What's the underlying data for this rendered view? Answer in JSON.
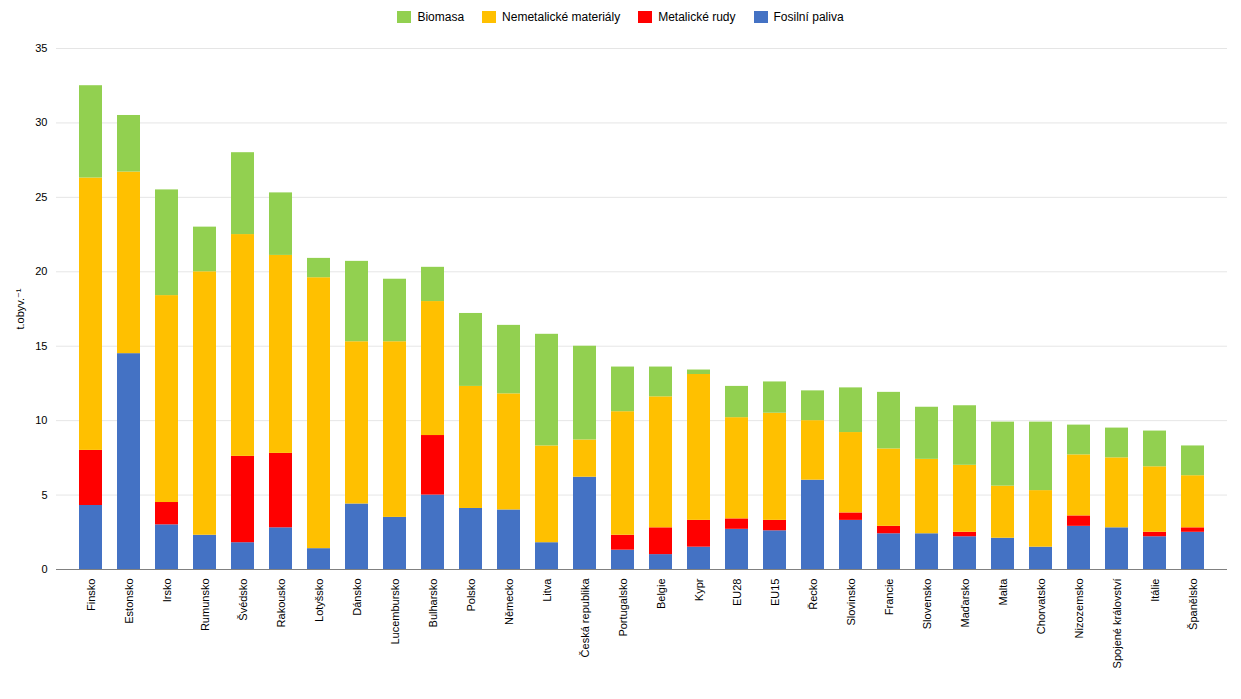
{
  "chart_data": {
    "type": "bar",
    "stacked": true,
    "categories": [
      "Finsko",
      "Estonsko",
      "Irsko",
      "Rumunsko",
      "Švédsko",
      "Rakousko",
      "Lotyšsko",
      "Dánsko",
      "Lucembursko",
      "Bulharsko",
      "Polsko",
      "Německo",
      "Litva",
      "Česká republika",
      "Portugalsko",
      "Belgie",
      "Kypr",
      "EU28",
      "EU15",
      "Řecko",
      "Slovinsko",
      "Francie",
      "Slovensko",
      "Maďarsko",
      "Malta",
      "Chorvatsko",
      "Nizozemsko",
      "Spojené království",
      "Itálie",
      "Španělsko"
    ],
    "series": [
      {
        "name": "Fosilní paliva",
        "color": "#4472c4",
        "values": [
          4.3,
          14.5,
          3.0,
          2.3,
          1.8,
          2.8,
          1.4,
          4.4,
          3.5,
          5.0,
          4.1,
          4.0,
          1.8,
          6.2,
          1.3,
          1.0,
          1.5,
          2.7,
          2.6,
          6.0,
          3.3,
          2.4,
          2.4,
          2.2,
          2.1,
          1.5,
          2.9,
          2.8,
          2.2,
          2.5
        ]
      },
      {
        "name": "Metalické rudy",
        "color": "#ff0000",
        "values": [
          3.7,
          0.0,
          1.5,
          0.0,
          5.8,
          5.0,
          0.0,
          0.0,
          0.0,
          4.0,
          0.0,
          0.0,
          0.0,
          0.0,
          1.0,
          1.8,
          1.8,
          0.7,
          0.7,
          0.0,
          0.5,
          0.5,
          0.0,
          0.3,
          0.0,
          0.0,
          0.7,
          0.0,
          0.3,
          0.3
        ]
      },
      {
        "name": "Nemetalické materiály",
        "color": "#ffc000",
        "values": [
          18.3,
          12.2,
          13.9,
          17.7,
          14.9,
          13.3,
          18.2,
          10.9,
          11.8,
          9.0,
          8.2,
          7.8,
          6.5,
          2.5,
          8.3,
          8.8,
          9.8,
          6.8,
          7.2,
          4.0,
          5.4,
          5.2,
          5.0,
          4.5,
          3.5,
          3.8,
          4.1,
          4.7,
          4.4,
          3.5
        ]
      },
      {
        "name": "Biomasa",
        "color": "#92d050",
        "values": [
          6.2,
          3.8,
          7.1,
          3.0,
          5.5,
          4.2,
          1.3,
          5.4,
          4.2,
          2.3,
          4.9,
          4.6,
          7.5,
          6.3,
          3.0,
          2.0,
          0.3,
          2.1,
          2.1,
          2.0,
          3.0,
          3.8,
          3.5,
          4.0,
          4.3,
          4.6,
          2.0,
          2.0,
          2.4,
          2.0
        ]
      }
    ],
    "ylabel": "t.obyv.⁻¹",
    "ylim": [
      0,
      35
    ],
    "yticks": [
      0,
      5,
      10,
      15,
      20,
      25,
      30,
      35
    ],
    "grid": true,
    "legend": "top"
  }
}
